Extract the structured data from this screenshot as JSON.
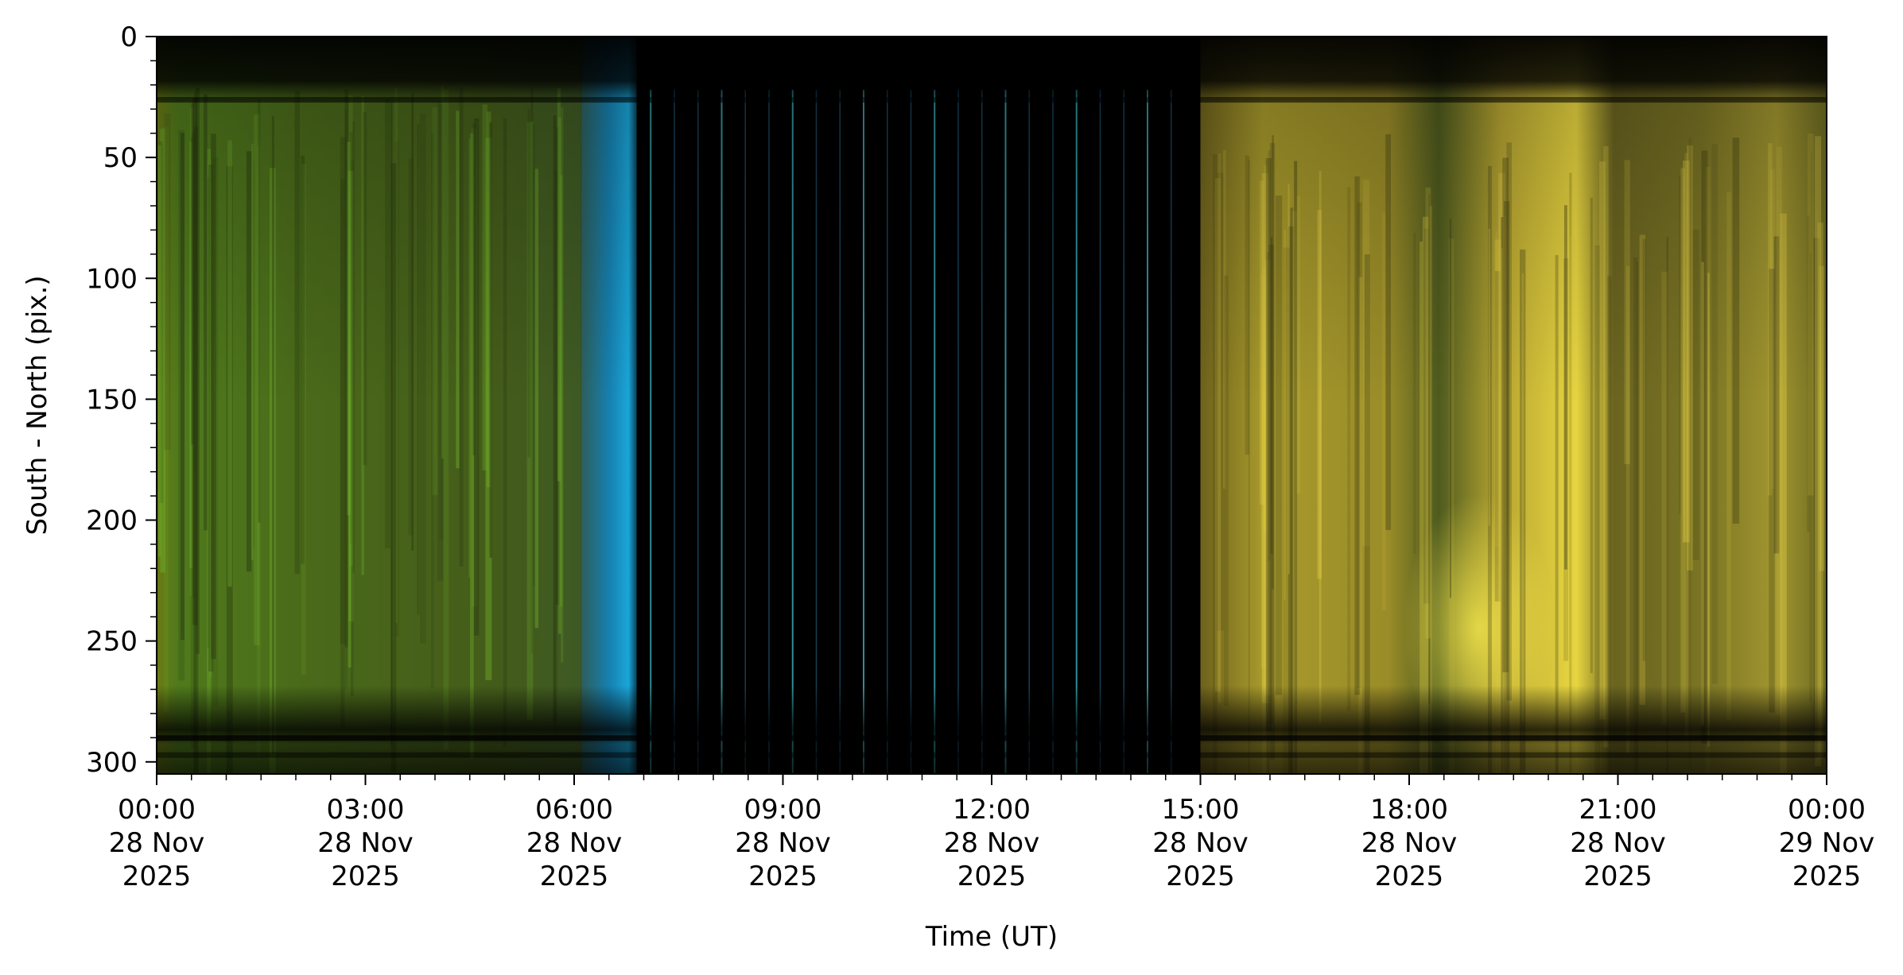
{
  "chart_data": {
    "type": "heatmap",
    "title": "",
    "xlabel": "Time (UT)",
    "ylabel": "South - North (pix.)",
    "xlim": [
      "2025-11-28 00:00",
      "2025-11-29 00:00"
    ],
    "ylim": [
      305,
      0
    ],
    "y_inverted": true,
    "grid": false,
    "x_ticks": [
      {
        "time": "00:00",
        "date": "28 Nov",
        "year": "2025"
      },
      {
        "time": "03:00",
        "date": "28 Nov",
        "year": "2025"
      },
      {
        "time": "06:00",
        "date": "28 Nov",
        "year": "2025"
      },
      {
        "time": "09:00",
        "date": "28 Nov",
        "year": "2025"
      },
      {
        "time": "12:00",
        "date": "28 Nov",
        "year": "2025"
      },
      {
        "time": "15:00",
        "date": "28 Nov",
        "year": "2025"
      },
      {
        "time": "18:00",
        "date": "28 Nov",
        "year": "2025"
      },
      {
        "time": "21:00",
        "date": "28 Nov",
        "year": "2025"
      },
      {
        "time": "00:00",
        "date": "29 Nov",
        "year": "2025"
      }
    ],
    "y_ticks": [
      0,
      50,
      100,
      150,
      200,
      250,
      300
    ],
    "segments": [
      {
        "from_hour": 0.0,
        "to_hour": 6.1,
        "color": "#4f6a1c"
      },
      {
        "from_hour": 6.1,
        "to_hour": 6.9,
        "color": "#1693c4"
      },
      {
        "from_hour": 6.9,
        "to_hour": 15.0,
        "color": "#000000"
      },
      {
        "from_hour": 15.0,
        "to_hour": 24.0,
        "color": "#a2922a"
      }
    ]
  }
}
